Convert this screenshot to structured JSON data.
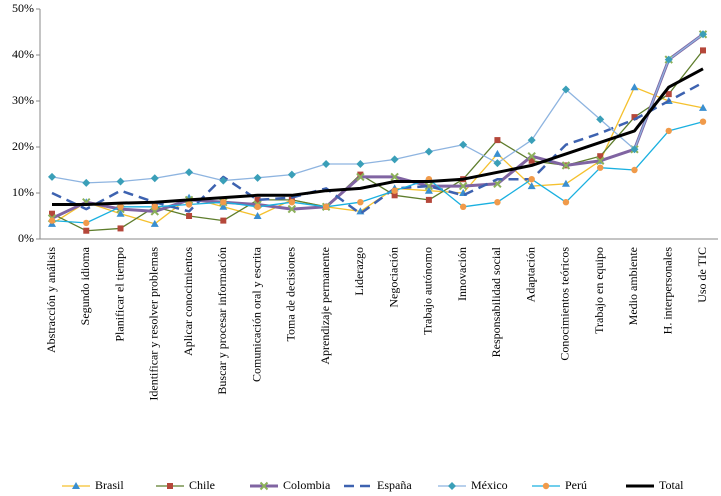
{
  "chart_data": {
    "type": "line",
    "categories": [
      "Abstracción y análisis",
      "Segundo idioma",
      "Planificar el tiempo",
      "Identificar y resolver problemas",
      "Aplicar conocimientos",
      "Buscar y procesar información",
      "Comunicación oral y escrita",
      "Toma de decisiones",
      "Aprendizaje permanente",
      "Liderazgo",
      "Negociación",
      "Trabajo autónomo",
      "Innovación",
      "Responsabilidad social",
      "Adaptación",
      "Conocimientos teóricos",
      "Trabajo en equipo",
      "Medio ambiente",
      "H. interpersonales",
      "Uso de TIC"
    ],
    "ylim": [
      0,
      50
    ],
    "yticks": [
      {
        "value": 0,
        "label": "0%"
      },
      {
        "value": 10,
        "label": "10%"
      },
      {
        "value": 20,
        "label": "20%"
      },
      {
        "value": 30,
        "label": "30%"
      },
      {
        "value": 40,
        "label": "40%"
      },
      {
        "value": 50,
        "label": "50%"
      }
    ],
    "series": [
      {
        "name": "Brasil",
        "color": "#f5c12e",
        "marker": "triangle",
        "marker_color": "#3a8fd0",
        "width": 1.3,
        "values": [
          3.3,
          8,
          5.5,
          3.3,
          9,
          7,
          5,
          8.5,
          7,
          6,
          11,
          10.5,
          10,
          18.5,
          11.5,
          12,
          17,
          33,
          30,
          28.5
        ]
      },
      {
        "name": "Chile",
        "color": "#5e7d2c",
        "marker": "square",
        "marker_color": "#b5473a",
        "width": 1.3,
        "values": [
          5.5,
          1.8,
          2.3,
          7,
          5,
          4,
          8.5,
          8.5,
          7,
          14,
          9.5,
          8.5,
          13,
          21.5,
          17,
          16,
          18,
          26.5,
          31.5,
          41
        ]
      },
      {
        "name": "Colombia",
        "color": "#8064a2",
        "marker": "x",
        "marker_color": "#8cb05a",
        "width": 3,
        "values": [
          4.5,
          8,
          6.5,
          6,
          8.5,
          8,
          7.5,
          6.5,
          7,
          13.5,
          13.5,
          11.5,
          11.5,
          12,
          18,
          16,
          17,
          19.5,
          39,
          44.5
        ]
      },
      {
        "name": "España",
        "color": "#3d62b0",
        "marker": "none",
        "marker_color": "#3d62b0",
        "width": 2.5,
        "dash": true,
        "values": [
          10,
          6.5,
          10.5,
          8,
          6,
          13.5,
          8.5,
          9,
          11,
          5.5,
          11,
          11.5,
          9.5,
          13,
          13,
          20.5,
          23,
          26,
          30,
          34
        ]
      },
      {
        "name": "México",
        "color": "#8eb4e0",
        "marker": "diamond",
        "marker_color": "#3a9fb8",
        "width": 1.3,
        "values": [
          13.5,
          12.2,
          12.5,
          13.2,
          14.5,
          12.7,
          13.3,
          14,
          16.3,
          16.3,
          17.3,
          19,
          20.5,
          16.5,
          21.5,
          32.5,
          26,
          19.5,
          39,
          44.5
        ]
      },
      {
        "name": "Perú",
        "color": "#1ab0e0",
        "marker": "circle",
        "marker_color": "#f09a4a",
        "width": 1.3,
        "values": [
          4,
          3.5,
          7,
          7,
          7.5,
          8,
          7,
          8,
          7,
          8,
          10.5,
          13,
          7,
          8,
          13,
          8,
          15.5,
          15,
          23.5,
          25.5
        ]
      },
      {
        "name": "Total",
        "color": "#000000",
        "marker": "none",
        "marker_color": "#000000",
        "width": 3,
        "values": [
          7.5,
          7.5,
          7.8,
          8,
          8.5,
          9,
          9.5,
          9.5,
          10.5,
          11,
          12.5,
          12.5,
          13,
          14.5,
          16,
          18.5,
          21,
          23.5,
          33,
          37
        ]
      }
    ]
  }
}
